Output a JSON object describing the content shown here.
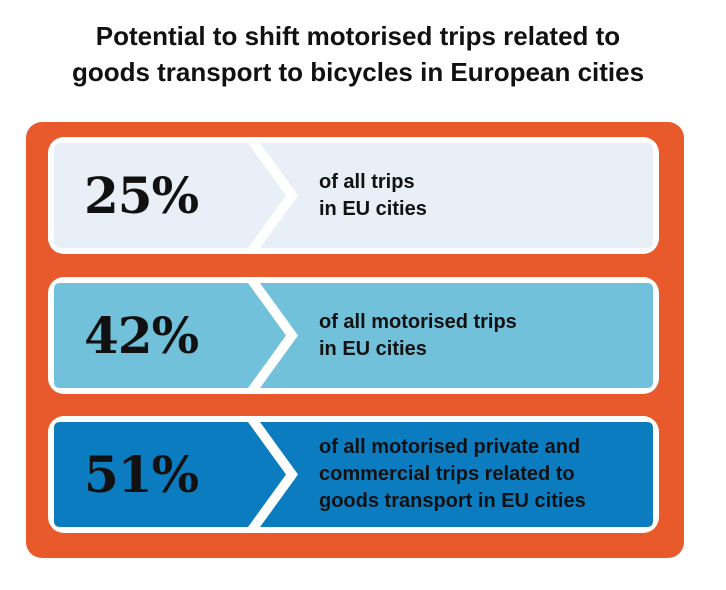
{
  "title": {
    "line1": "Potential to shift motorised trips related to",
    "line2": "goods transport to bicycles in European cities"
  },
  "colors": {
    "frame": "#e85a2c",
    "row1_fill": "#e9eff7",
    "row2_fill": "#71c1db",
    "row3_fill": "#0c7cc1"
  },
  "stats": [
    {
      "percent": "25%",
      "lines": [
        "of all trips",
        "in EU cities"
      ]
    },
    {
      "percent": "42%",
      "lines": [
        "of all motorised trips",
        "in EU cities"
      ]
    },
    {
      "percent": "51%",
      "lines": [
        "of all motorised private and",
        "commercial trips related to",
        "goods transport  in EU cities"
      ]
    }
  ]
}
